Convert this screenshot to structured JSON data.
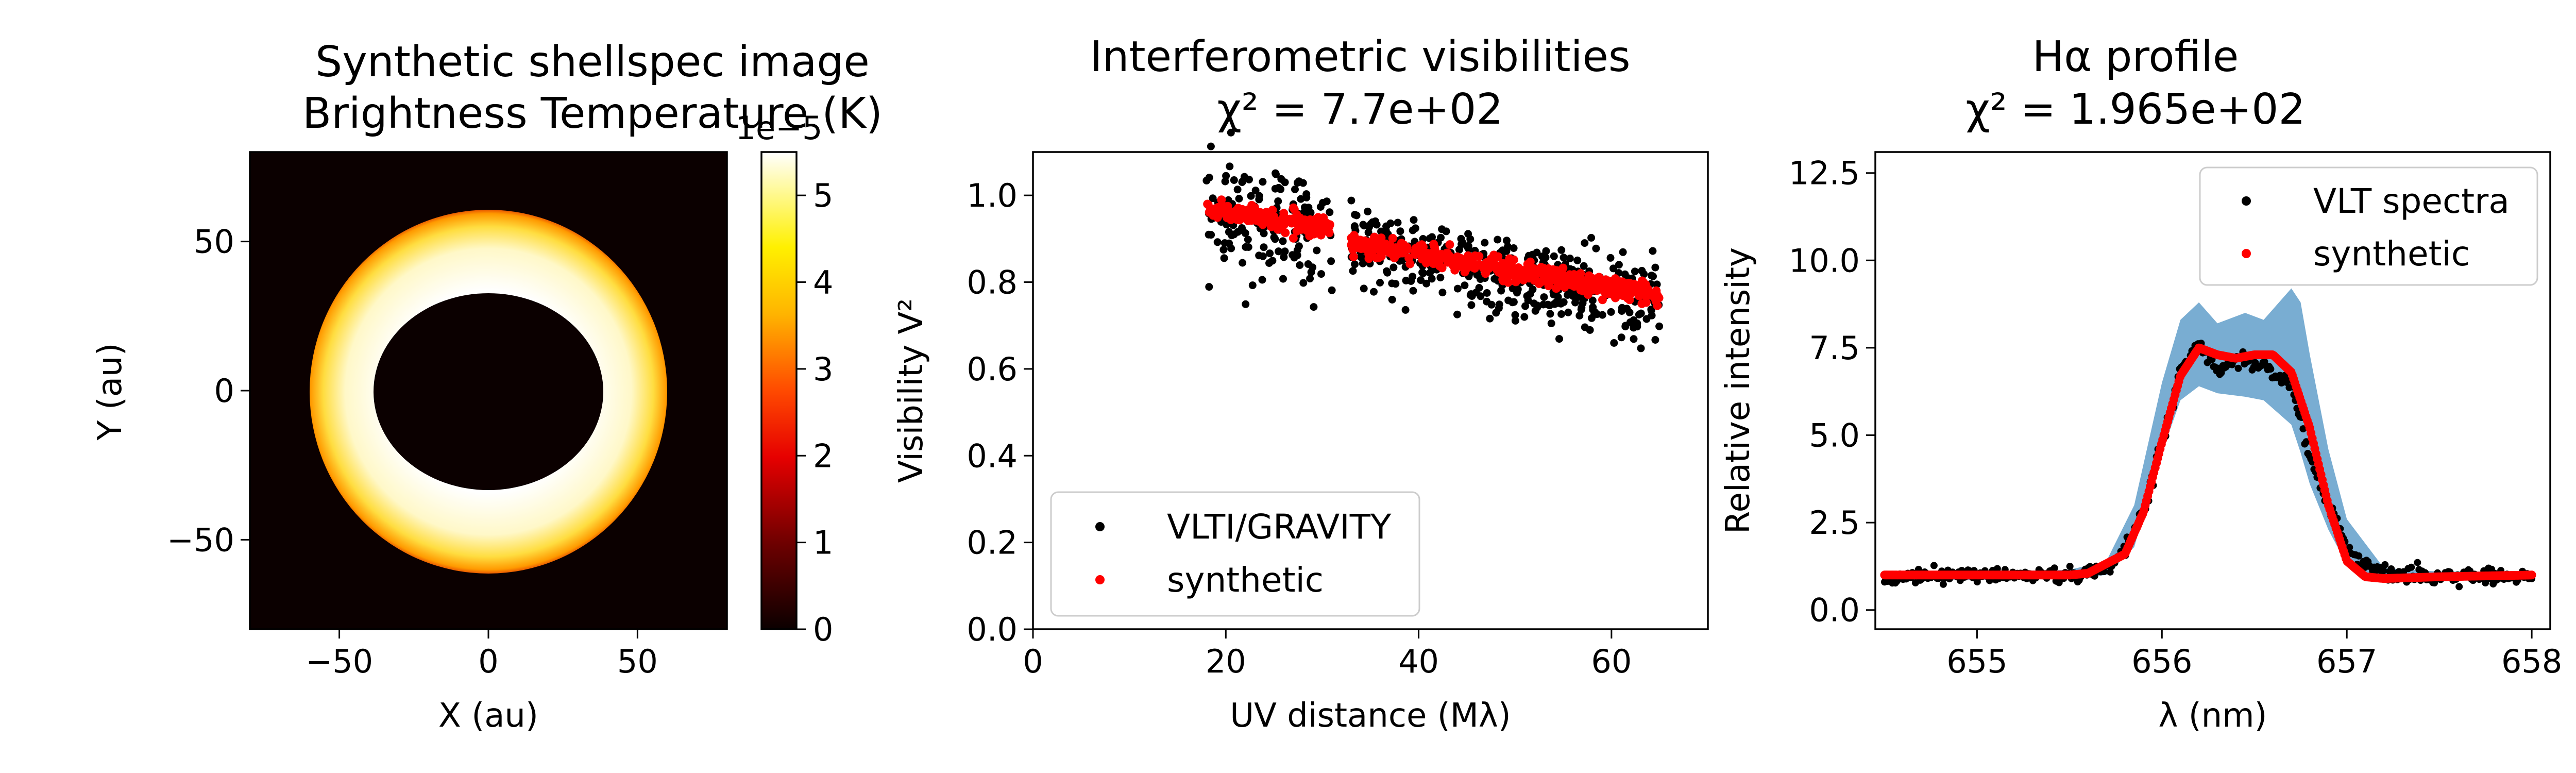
{
  "chart_data": [
    {
      "type": "heatmap",
      "title_lines": [
        "Synthetic shellspec image",
        "Brightness Temperature (K)"
      ],
      "xlabel": "X (au)",
      "ylabel": "Y (au)",
      "xlim": [
        -80,
        80
      ],
      "ylim": [
        -80,
        80
      ],
      "xticks": [
        -50,
        0,
        50
      ],
      "xtick_labels": [
        "−50",
        "0",
        "50"
      ],
      "yticks": [
        -50,
        0,
        50
      ],
      "ytick_labels": [
        "−50",
        "0",
        "50"
      ],
      "colormap": "hot",
      "colorbar": {
        "ticks": [
          0,
          1,
          2,
          3,
          4,
          5
        ],
        "tick_labels": [
          "0",
          "1",
          "2",
          "3",
          "4",
          "5"
        ],
        "range": [
          0,
          5.5
        ],
        "offset_label": "1e−5"
      },
      "ring": {
        "center": [
          0,
          0
        ],
        "outer_radius_x": 60,
        "outer_radius_y": 61,
        "inner_radius_x": 38.5,
        "inner_radius_y": 33,
        "inner_value": 5.5,
        "edge_value": 2.5,
        "outside_value": 0
      }
    },
    {
      "type": "scatter",
      "title_lines": [
        "Interferometric visibilities",
        "χ² =  7.7e+02"
      ],
      "xlabel": "UV distance (Mλ)",
      "ylabel": "Visibility V²",
      "xlim": [
        0,
        70
      ],
      "ylim": [
        0,
        1.1
      ],
      "xticks": [
        0,
        20,
        40,
        60
      ],
      "xtick_labels": [
        "0",
        "20",
        "40",
        "60"
      ],
      "yticks": [
        0,
        0.2,
        0.4,
        0.6,
        0.8,
        1.0
      ],
      "ytick_labels": [
        "0.0",
        "0.2",
        "0.4",
        "0.6",
        "0.8",
        "1.0"
      ],
      "legend_position": "lower-left",
      "series": [
        {
          "name": "VLTI/GRAVITY",
          "color": "#000000",
          "segments": [
            {
              "x": [
                18,
                31
              ],
              "y": [
                0.97,
                0.9
              ],
              "scatter": 0.065,
              "n": 150
            },
            {
              "x": [
                33,
                65
              ],
              "y": [
                0.89,
                0.75
              ],
              "scatter": 0.045,
              "n": 420
            }
          ]
        },
        {
          "name": "synthetic",
          "color": "#ff0000",
          "segments": [
            {
              "x": [
                18,
                31
              ],
              "y": [
                0.97,
                0.92
              ],
              "scatter": 0.012,
              "n": 160
            },
            {
              "x": [
                33,
                65
              ],
              "y": [
                0.89,
                0.77
              ],
              "scatter": 0.012,
              "n": 420
            }
          ]
        }
      ]
    },
    {
      "type": "line",
      "title_lines": [
        "Hα profile",
        "χ² =  1.965e+02"
      ],
      "xlabel": "λ (nm)",
      "ylabel": "Relative intensity",
      "xlim": [
        654.45,
        658.1
      ],
      "ylim": [
        -0.55,
        13.1
      ],
      "xticks": [
        655,
        656,
        657,
        658
      ],
      "xtick_labels": [
        "655",
        "656",
        "657",
        "658"
      ],
      "yticks": [
        0,
        2.5,
        5,
        7.5,
        10,
        12.5
      ],
      "ytick_labels": [
        "0.0",
        "2.5",
        "5.0",
        "7.5",
        "10.0",
        "12.5"
      ],
      "legend_position": "top-right",
      "band_color": "#1f77b4",
      "band": {
        "x": [
          654.5,
          655.0,
          655.5,
          655.7,
          655.85,
          656.0,
          656.1,
          656.2,
          656.3,
          656.45,
          656.55,
          656.7,
          656.75,
          656.8,
          656.9,
          657.0,
          657.2,
          657.5,
          658.0
        ],
        "lower": [
          0.85,
          0.85,
          0.9,
          1.0,
          1.8,
          4.5,
          6.0,
          6.4,
          6.2,
          6.1,
          6.0,
          5.3,
          4.5,
          3.6,
          2.3,
          1.3,
          0.85,
          0.85,
          0.85
        ],
        "upper": [
          1.1,
          1.1,
          1.15,
          1.4,
          3.0,
          6.5,
          8.3,
          8.8,
          8.2,
          8.5,
          8.3,
          9.2,
          8.8,
          7.3,
          4.6,
          2.6,
          1.2,
          1.1,
          1.1
        ]
      },
      "series": [
        {
          "name": "VLT spectra",
          "color": "#000000",
          "x": [
            654.5,
            655.0,
            655.5,
            655.7,
            655.8,
            655.9,
            656.0,
            656.1,
            656.18,
            656.25,
            656.3,
            656.35,
            656.45,
            656.55,
            656.6,
            656.65,
            656.7,
            656.75,
            656.8,
            656.9,
            657.0,
            657.1,
            657.3,
            657.6,
            658.0
          ],
          "y": [
            0.95,
            1.0,
            1.0,
            1.2,
            1.7,
            2.8,
            4.8,
            6.8,
            7.5,
            7.3,
            6.8,
            7.0,
            7.2,
            7.0,
            6.8,
            6.6,
            6.4,
            5.5,
            4.4,
            3.0,
            1.8,
            1.2,
            1.0,
            0.95,
            1.0
          ],
          "noise": 0.12
        },
        {
          "name": "synthetic",
          "color": "#ff0000",
          "x": [
            654.5,
            655.0,
            655.5,
            655.6,
            655.8,
            655.9,
            656.0,
            656.1,
            656.2,
            656.3,
            656.4,
            656.5,
            656.6,
            656.7,
            656.8,
            656.9,
            657.0,
            657.1,
            657.2,
            657.5,
            658.0
          ],
          "y": [
            1.0,
            1.0,
            1.0,
            1.05,
            1.6,
            2.8,
            4.8,
            6.7,
            7.5,
            7.3,
            7.2,
            7.3,
            7.3,
            6.8,
            5.2,
            3.0,
            1.4,
            0.95,
            0.9,
            0.95,
            1.0
          ]
        }
      ]
    }
  ]
}
